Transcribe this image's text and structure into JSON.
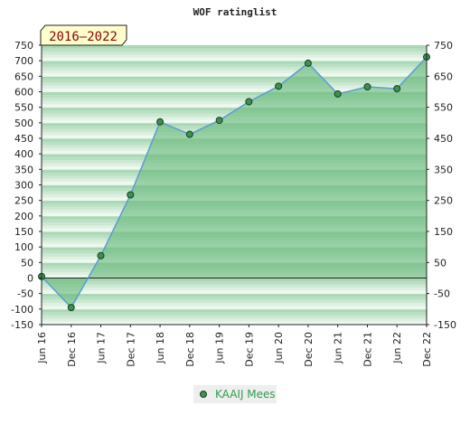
{
  "chart_data": {
    "type": "area",
    "title": "WOF ratinglist",
    "badge": "2016–2022",
    "categories": [
      "Jun 16",
      "Dec 16",
      "Jun 17",
      "Dec 17",
      "Jun 18",
      "Dec 18",
      "Jun 19",
      "Dec 19",
      "Jun 20",
      "Dec 20",
      "Jun 21",
      "Dec 21",
      "Jun 22",
      "Dec 22"
    ],
    "series": [
      {
        "name": "KAAIJ Mees",
        "values": [
          5,
          -95,
          72,
          268,
          503,
          463,
          508,
          568,
          618,
          692,
          593,
          616,
          610,
          712
        ]
      }
    ],
    "y_left": {
      "min": -150,
      "max": 750,
      "ticks": [
        750,
        700,
        650,
        600,
        550,
        500,
        450,
        400,
        350,
        300,
        250,
        200,
        150,
        100,
        50,
        0,
        -50,
        -100,
        -150
      ]
    },
    "y_right": {
      "ticks": [
        750,
        650,
        550,
        450,
        350,
        250,
        150,
        50,
        -50,
        -150
      ]
    },
    "grid": true,
    "legend": "bottom-center",
    "colors": {
      "line": "#5b9bd5",
      "fill": "#6dbb7f",
      "marker": "#3d9150",
      "band_dark": "#a9d8b4",
      "band_light": "#e6f4e9",
      "badge_bg": "#ffffcc"
    }
  }
}
